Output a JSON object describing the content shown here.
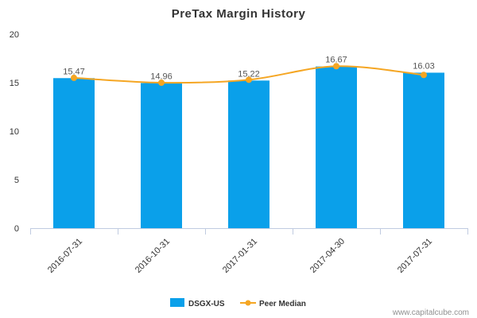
{
  "chart_data": {
    "type": "bar",
    "title": "PreTax Margin History",
    "categories": [
      "2016-07-31",
      "2016-10-31",
      "2017-01-31",
      "2017-04-30",
      "2017-07-31"
    ],
    "ylim": [
      0,
      20
    ],
    "yticks": [
      "0",
      "5",
      "10",
      "15",
      "20"
    ],
    "grid": false,
    "legend_position": "bottom-center",
    "series": [
      {
        "name": "DSGX-US",
        "type": "bar",
        "color": "#0aa0ea",
        "values": [
          15.47,
          14.96,
          15.22,
          16.67,
          16.03
        ]
      },
      {
        "name": "Peer Median",
        "type": "line",
        "color": "#f5a623",
        "values": [
          15.5,
          15.0,
          15.3,
          16.7,
          15.8
        ]
      }
    ],
    "data_labels": [
      "15.47",
      "14.96",
      "15.22",
      "16.67",
      "16.03"
    ]
  },
  "credit": "www.capitalcube.com"
}
